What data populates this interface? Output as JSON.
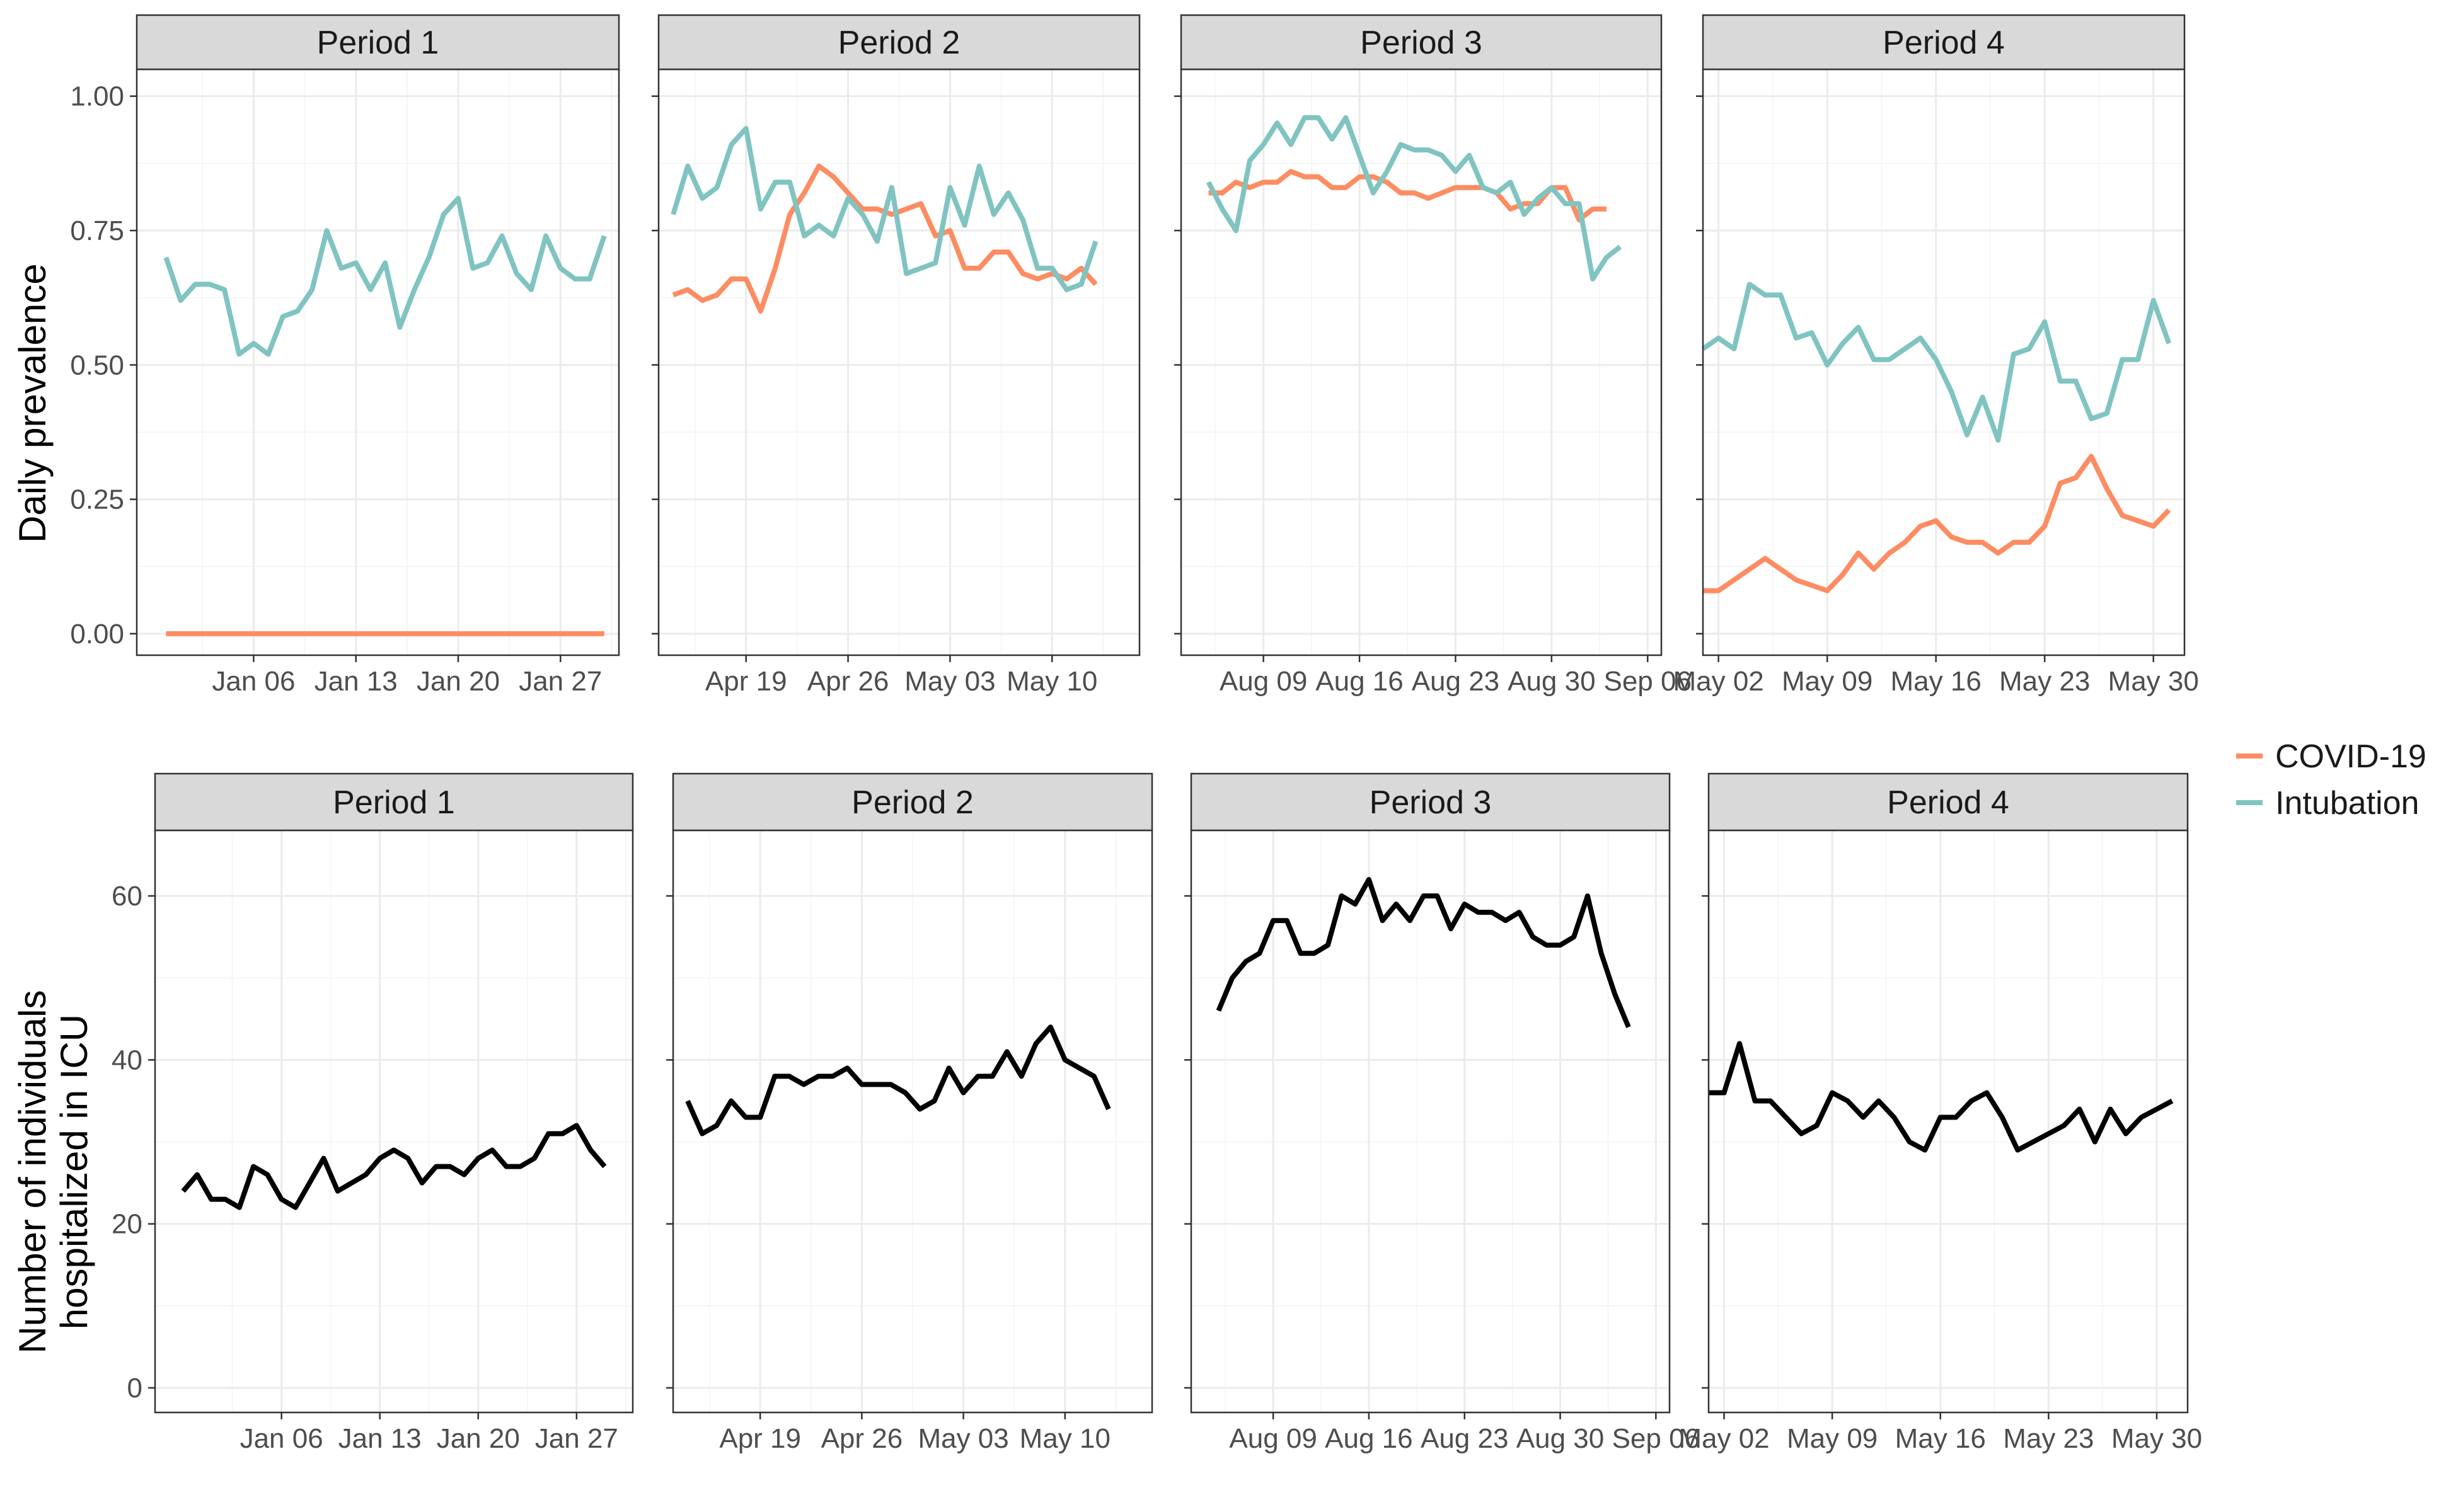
{
  "chart_data": [
    {
      "type": "line",
      "facet_title": "Period 1",
      "row": 1,
      "ylabel": "Daily prevalence",
      "ylim": [
        -0.04,
        1.05
      ],
      "yticks": [
        0,
        0.25,
        0.5,
        0.75,
        1.0
      ],
      "ytick_labels": [
        "0.00",
        "0.25",
        "0.50",
        "0.75",
        "1.00"
      ],
      "xlim": [
        "2020-12-29",
        "2021-01-31"
      ],
      "xticks": [
        "2021-01-06",
        "2021-01-13",
        "2021-01-20",
        "2021-01-27"
      ],
      "xtick_labels": [
        "Jan 06",
        "Jan 13",
        "Jan 20",
        "Jan 27"
      ],
      "start_date": "2020-12-31",
      "series": [
        {
          "name": "COVID-19",
          "color": "#fc8d62",
          "values": [
            0,
            0,
            0,
            0,
            0,
            0,
            0,
            0,
            0,
            0,
            0,
            0,
            0,
            0,
            0,
            0,
            0,
            0,
            0,
            0,
            0,
            0,
            0,
            0,
            0,
            0,
            0,
            0,
            0,
            0,
            0
          ]
        },
        {
          "name": "Intubation",
          "color": "#80c4c2",
          "values": [
            0.7,
            0.62,
            0.65,
            0.65,
            0.64,
            0.52,
            0.54,
            0.52,
            0.59,
            0.6,
            0.64,
            0.75,
            0.68,
            0.69,
            0.64,
            0.69,
            0.57,
            0.64,
            0.7,
            0.78,
            0.81,
            0.68,
            0.69,
            0.74,
            0.67,
            0.64,
            0.74,
            0.68,
            0.66,
            0.66,
            0.74
          ]
        }
      ]
    },
    {
      "type": "line",
      "facet_title": "Period 2",
      "row": 1,
      "ylim": [
        -0.04,
        1.05
      ],
      "yticks": [
        0,
        0.25,
        0.5,
        0.75,
        1.0
      ],
      "xlim": [
        "2021-04-13",
        "2021-05-16"
      ],
      "xticks": [
        "2021-04-19",
        "2021-04-26",
        "2021-05-03",
        "2021-05-10"
      ],
      "xtick_labels": [
        "Apr 19",
        "Apr 26",
        "May 03",
        "May 10"
      ],
      "start_date": "2021-04-14",
      "series": [
        {
          "name": "COVID-19",
          "color": "#fc8d62",
          "values": [
            0.63,
            0.64,
            0.62,
            0.63,
            0.66,
            0.66,
            0.6,
            0.68,
            0.78,
            0.82,
            0.87,
            0.85,
            0.82,
            0.79,
            0.79,
            0.78,
            0.79,
            0.8,
            0.74,
            0.75,
            0.68,
            0.68,
            0.71,
            0.71,
            0.67,
            0.66,
            0.67,
            0.66,
            0.68,
            0.65
          ]
        },
        {
          "name": "Intubation",
          "color": "#80c4c2",
          "values": [
            0.78,
            0.87,
            0.81,
            0.83,
            0.91,
            0.94,
            0.79,
            0.84,
            0.84,
            0.74,
            0.76,
            0.74,
            0.81,
            0.78,
            0.73,
            0.83,
            0.67,
            0.68,
            0.69,
            0.83,
            0.76,
            0.87,
            0.78,
            0.82,
            0.77,
            0.68,
            0.68,
            0.64,
            0.65,
            0.73
          ]
        }
      ]
    },
    {
      "type": "line",
      "facet_title": "Period 3",
      "row": 1,
      "ylim": [
        -0.04,
        1.05
      ],
      "yticks": [
        0,
        0.25,
        0.5,
        0.75,
        1.0
      ],
      "xlim": [
        "2021-08-03",
        "2021-09-07"
      ],
      "xticks": [
        "2021-08-09",
        "2021-08-16",
        "2021-08-23",
        "2021-08-30",
        "2021-09-06"
      ],
      "xtick_labels": [
        "Aug 09",
        "Aug 16",
        "Aug 23",
        "Aug 30",
        "Sep 06"
      ],
      "start_date": "2021-08-05",
      "series": [
        {
          "name": "COVID-19",
          "color": "#fc8d62",
          "values": [
            0.82,
            0.82,
            0.84,
            0.83,
            0.84,
            0.84,
            0.86,
            0.85,
            0.85,
            0.83,
            0.83,
            0.85,
            0.85,
            0.84,
            0.82,
            0.82,
            0.81,
            0.82,
            0.83,
            0.83,
            0.83,
            0.82,
            0.79,
            0.8,
            0.8,
            0.83,
            0.83,
            0.77,
            0.79,
            0.79
          ]
        },
        {
          "name": "Intubation",
          "color": "#80c4c2",
          "values": [
            0.84,
            0.79,
            0.75,
            0.88,
            0.91,
            0.95,
            0.91,
            0.96,
            0.96,
            0.92,
            0.96,
            0.89,
            0.82,
            0.86,
            0.91,
            0.9,
            0.9,
            0.89,
            0.86,
            0.89,
            0.83,
            0.82,
            0.84,
            0.78,
            0.81,
            0.83,
            0.8,
            0.8,
            0.66,
            0.7,
            0.72
          ]
        }
      ]
    },
    {
      "type": "line",
      "facet_title": "Period 4",
      "row": 1,
      "ylim": [
        -0.04,
        1.05
      ],
      "yticks": [
        0,
        0.25,
        0.5,
        0.75,
        1.0
      ],
      "xlim": [
        "2021-05-01",
        "2021-06-01"
      ],
      "xticks": [
        "2021-05-02",
        "2021-05-09",
        "2021-05-16",
        "2021-05-23",
        "2021-05-30"
      ],
      "xtick_labels": [
        "May 02",
        "May 09",
        "May 16",
        "May 23",
        "May 30"
      ],
      "start_date": "2021-05-01",
      "series": [
        {
          "name": "COVID-19",
          "color": "#fc8d62",
          "values": [
            0.08,
            0.08,
            0.1,
            0.12,
            0.14,
            0.12,
            0.1,
            0.09,
            0.08,
            0.11,
            0.15,
            0.12,
            0.15,
            0.17,
            0.2,
            0.21,
            0.18,
            0.17,
            0.17,
            0.15,
            0.17,
            0.17,
            0.2,
            0.28,
            0.29,
            0.33,
            0.27,
            0.22,
            0.21,
            0.2,
            0.23
          ]
        },
        {
          "name": "Intubation",
          "color": "#80c4c2",
          "values": [
            0.53,
            0.55,
            0.53,
            0.65,
            0.63,
            0.63,
            0.55,
            0.56,
            0.5,
            0.54,
            0.57,
            0.51,
            0.51,
            0.53,
            0.55,
            0.51,
            0.45,
            0.37,
            0.44,
            0.36,
            0.52,
            0.53,
            0.58,
            0.47,
            0.47,
            0.4,
            0.41,
            0.51,
            0.51,
            0.62,
            0.54
          ]
        }
      ]
    },
    {
      "type": "line",
      "facet_title": "Period 1",
      "row": 2,
      "ylabel": "Number of individuals hospitalized in ICU",
      "ylim": [
        -3,
        68
      ],
      "yticks": [
        0,
        20,
        40,
        60
      ],
      "ytick_labels": [
        "0",
        "20",
        "40",
        "60"
      ],
      "xlim": [
        "2020-12-28",
        "2021-01-31"
      ],
      "xticks": [
        "2021-01-06",
        "2021-01-13",
        "2021-01-20",
        "2021-01-27"
      ],
      "xtick_labels": [
        "Jan 06",
        "Jan 13",
        "Jan 20",
        "Jan 27"
      ],
      "start_date": "2020-12-30",
      "series": [
        {
          "color": "#000000",
          "values": [
            24,
            26,
            23,
            23,
            22,
            27,
            26,
            23,
            22,
            25,
            28,
            24,
            25,
            26,
            28,
            29,
            28,
            25,
            27,
            27,
            26,
            28,
            29,
            27,
            27,
            28,
            31,
            31,
            32,
            29,
            27
          ]
        }
      ]
    },
    {
      "type": "line",
      "facet_title": "Period 2",
      "row": 2,
      "ylim": [
        -3,
        68
      ],
      "yticks": [
        0,
        20,
        40,
        60
      ],
      "xlim": [
        "2021-04-13",
        "2021-05-16"
      ],
      "xticks": [
        "2021-04-19",
        "2021-04-26",
        "2021-05-03",
        "2021-05-10"
      ],
      "xtick_labels": [
        "Apr 19",
        "Apr 26",
        "May 03",
        "May 10"
      ],
      "start_date": "2021-04-14",
      "series": [
        {
          "color": "#000000",
          "values": [
            35,
            31,
            32,
            35,
            33,
            33,
            38,
            38,
            37,
            38,
            38,
            39,
            37,
            37,
            37,
            36,
            34,
            35,
            39,
            36,
            38,
            38,
            41,
            38,
            42,
            44,
            40,
            39,
            38,
            34
          ]
        }
      ]
    },
    {
      "type": "line",
      "facet_title": "Period 3",
      "row": 2,
      "ylim": [
        -3,
        68
      ],
      "yticks": [
        0,
        20,
        40,
        60
      ],
      "xlim": [
        "2021-08-03",
        "2021-09-07"
      ],
      "xticks": [
        "2021-08-09",
        "2021-08-16",
        "2021-08-23",
        "2021-08-30",
        "2021-09-06"
      ],
      "xtick_labels": [
        "Aug 09",
        "Aug 16",
        "Aug 23",
        "Aug 30",
        "Sep 06"
      ],
      "start_date": "2021-08-05",
      "series": [
        {
          "color": "#000000",
          "values": [
            46,
            50,
            52,
            53,
            57,
            57,
            53,
            53,
            54,
            60,
            59,
            62,
            57,
            59,
            57,
            60,
            60,
            56,
            59,
            58,
            58,
            57,
            58,
            55,
            54,
            54,
            55,
            60,
            53,
            48,
            44
          ]
        }
      ]
    },
    {
      "type": "line",
      "facet_title": "Period 4",
      "row": 2,
      "ylim": [
        -3,
        68
      ],
      "yticks": [
        0,
        20,
        40,
        60
      ],
      "xlim": [
        "2021-05-01",
        "2021-06-01"
      ],
      "xticks": [
        "2021-05-02",
        "2021-05-09",
        "2021-05-16",
        "2021-05-23",
        "2021-05-30"
      ],
      "xtick_labels": [
        "May 02",
        "May 09",
        "May 16",
        "May 23",
        "May 30"
      ],
      "start_date": "2021-05-01",
      "series": [
        {
          "color": "#000000",
          "values": [
            36,
            36,
            42,
            35,
            35,
            33,
            31,
            32,
            36,
            35,
            33,
            35,
            33,
            30,
            29,
            33,
            33,
            35,
            36,
            33,
            29,
            30,
            31,
            32,
            34,
            30,
            34,
            31,
            33,
            34,
            35
          ]
        }
      ]
    }
  ],
  "legend": {
    "placement": "right",
    "items": [
      {
        "label": "COVID-19",
        "color": "#fc8d62"
      },
      {
        "label": "Intubation",
        "color": "#80c4c2"
      }
    ]
  },
  "axis_titles": {
    "top_ylabel": "Daily prevalence",
    "bottom_ylabel_line1": "Number of individuals",
    "bottom_ylabel_line2": "hospitalized in ICU"
  }
}
